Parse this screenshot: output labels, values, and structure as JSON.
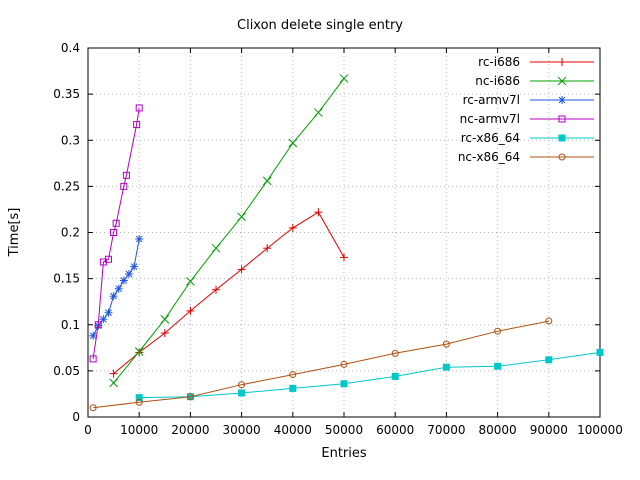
{
  "chart_data": {
    "type": "line",
    "title": "Clixon delete single entry",
    "xlabel": "Entries",
    "ylabel": "Time[s]",
    "xlim": [
      0,
      100000
    ],
    "ylim": [
      0,
      0.4
    ],
    "xticks": [
      0,
      10000,
      20000,
      30000,
      40000,
      50000,
      60000,
      70000,
      80000,
      90000,
      100000
    ],
    "xtick_labels": [
      "0",
      "10000",
      "20000",
      "30000",
      "40000",
      "50000",
      "60000",
      "70000",
      "80000",
      "90000",
      "100000"
    ],
    "yticks": [
      0,
      0.05,
      0.1,
      0.15,
      0.2,
      0.25,
      0.3,
      0.35,
      0.4
    ],
    "ytick_labels": [
      "0",
      "0.05",
      "0.1",
      "0.15",
      "0.2",
      "0.25",
      "0.3",
      "0.35",
      "0.4"
    ],
    "grid": true,
    "legend_position": "top-right",
    "series": [
      {
        "name": "rc-i686",
        "color": "#e00000",
        "marker": "plus",
        "points": [
          [
            5000,
            0.047
          ],
          [
            10000,
            0.07
          ],
          [
            15000,
            0.091
          ],
          [
            20000,
            0.115
          ],
          [
            25000,
            0.138
          ],
          [
            30000,
            0.16
          ],
          [
            35000,
            0.183
          ],
          [
            40000,
            0.205
          ],
          [
            45000,
            0.222
          ],
          [
            50000,
            0.173
          ]
        ]
      },
      {
        "name": "nc-i686",
        "color": "#00a000",
        "marker": "cross",
        "points": [
          [
            5000,
            0.037
          ],
          [
            10000,
            0.071
          ],
          [
            15000,
            0.106
          ],
          [
            20000,
            0.147
          ],
          [
            25000,
            0.183
          ],
          [
            30000,
            0.217
          ],
          [
            35000,
            0.256
          ],
          [
            40000,
            0.297
          ],
          [
            45000,
            0.33
          ],
          [
            50000,
            0.367
          ]
        ]
      },
      {
        "name": "rc-armv7l",
        "color": "#1e56e0",
        "marker": "asterisk",
        "points": [
          [
            1000,
            0.088
          ],
          [
            2000,
            0.099
          ],
          [
            3000,
            0.106
          ],
          [
            4000,
            0.113
          ],
          [
            5000,
            0.131
          ],
          [
            6000,
            0.139
          ],
          [
            7000,
            0.148
          ],
          [
            8000,
            0.155
          ],
          [
            9000,
            0.163
          ],
          [
            10000,
            0.193
          ]
        ]
      },
      {
        "name": "nc-armv7l",
        "color": "#b000c0",
        "marker": "square-open",
        "points": [
          [
            1000,
            0.063
          ],
          [
            2000,
            0.1
          ],
          [
            3000,
            0.168
          ],
          [
            4000,
            0.171
          ],
          [
            5000,
            0.2
          ],
          [
            5500,
            0.21
          ],
          [
            7000,
            0.25
          ],
          [
            7500,
            0.262
          ],
          [
            9500,
            0.317
          ],
          [
            10000,
            0.335
          ]
        ]
      },
      {
        "name": "rc-x86_64",
        "color": "#00c8c8",
        "marker": "square-filled",
        "points": [
          [
            10000,
            0.021
          ],
          [
            20000,
            0.022
          ],
          [
            30000,
            0.026
          ],
          [
            40000,
            0.031
          ],
          [
            50000,
            0.036
          ],
          [
            60000,
            0.044
          ],
          [
            70000,
            0.054
          ],
          [
            80000,
            0.055
          ],
          [
            90000,
            0.062
          ],
          [
            100000,
            0.07
          ]
        ]
      },
      {
        "name": "nc-x86_64",
        "color": "#b05010",
        "marker": "circle-open",
        "points": [
          [
            1000,
            0.01
          ],
          [
            10000,
            0.016
          ],
          [
            20000,
            0.022
          ],
          [
            30000,
            0.035
          ],
          [
            40000,
            0.046
          ],
          [
            50000,
            0.057
          ],
          [
            60000,
            0.069
          ],
          [
            70000,
            0.079
          ],
          [
            80000,
            0.093
          ],
          [
            90000,
            0.104
          ]
        ]
      }
    ]
  }
}
